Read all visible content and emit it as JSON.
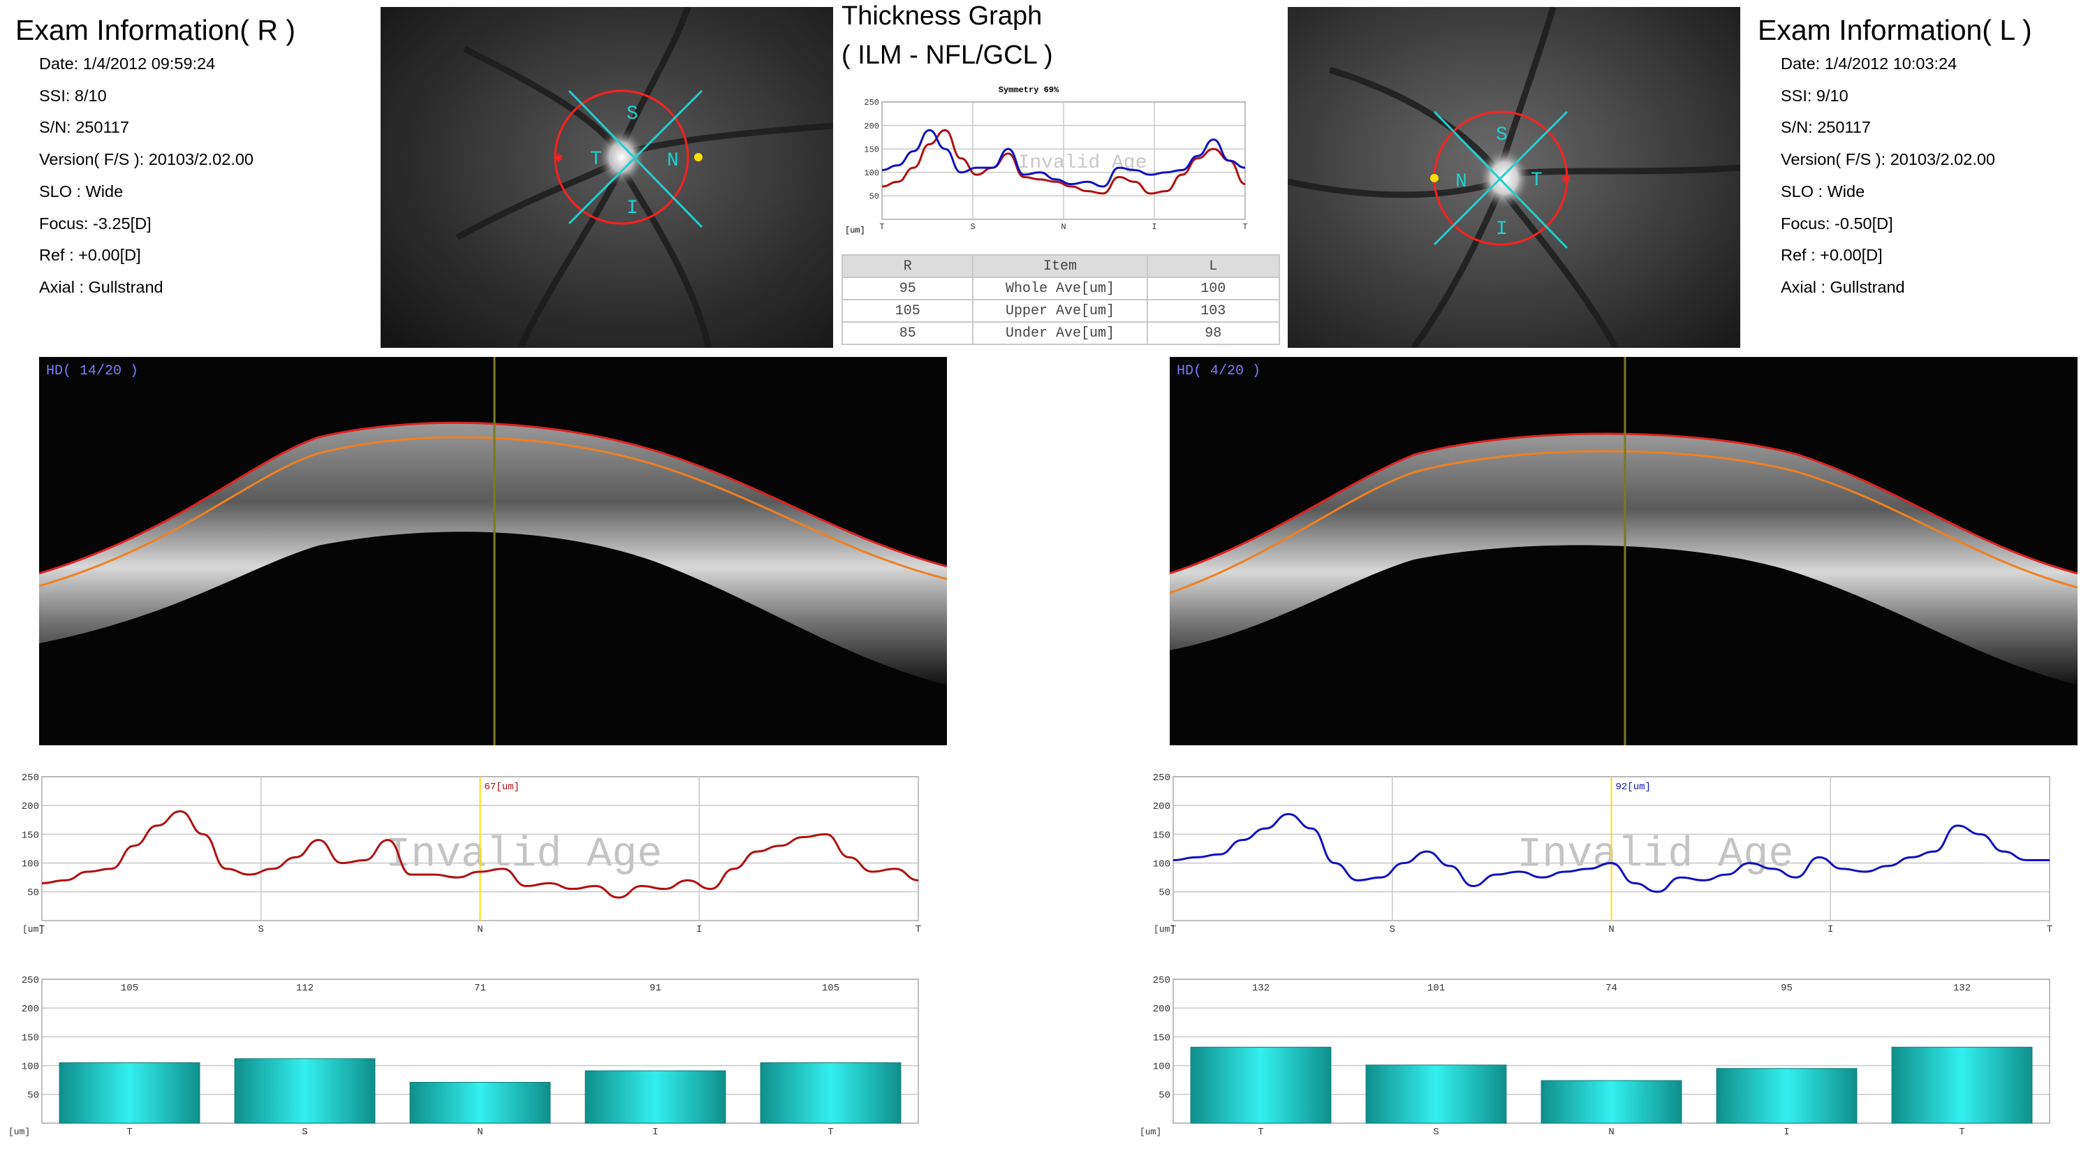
{
  "right_exam": {
    "title": "Exam Information( R )",
    "fields": [
      "Date: 1/4/2012 09:59:24",
      "SSI:  8/10",
      "S/N: 250117",
      "Version( F/S ): 20103/2.02.00",
      "SLO : Wide",
      "Focus: -3.25[D]",
      "Ref : +0.00[D]",
      "Axial : Gullstrand"
    ]
  },
  "left_exam": {
    "title": "Exam Information( L )",
    "fields": [
      "Date: 1/4/2012 10:03:24",
      "SSI:  9/10",
      "S/N: 250117",
      "Version( F/S ): 20103/2.02.00",
      "SLO : Wide",
      "Focus: -0.50[D]",
      "Ref : +0.00[D]",
      "Axial : Gullstrand"
    ]
  },
  "fundus_right": {
    "labels": {
      "s": "S",
      "n": "N",
      "i": "I",
      "t": "T"
    }
  },
  "fundus_left": {
    "labels": {
      "s": "S",
      "n": "N",
      "i": "I",
      "t": "T"
    }
  },
  "thickness_graph": {
    "title_line1": "Thickness Graph",
    "title_line2": "( ILM - NFL/GCL )",
    "chart_data": {
      "type": "line",
      "title": "Symmetry 69%",
      "ylim": [
        0,
        250
      ],
      "yticks": [
        250,
        200,
        150,
        100,
        50
      ],
      "yunit": "[um]",
      "xticks": [
        "T",
        "S",
        "N",
        "I",
        "T"
      ],
      "watermark": "Invalid Age",
      "series": [
        {
          "color": "#b01010",
          "values": [
            70,
            80,
            110,
            160,
            190,
            130,
            95,
            110,
            140,
            90,
            85,
            80,
            70,
            60,
            55,
            90,
            80,
            55,
            60,
            95,
            130,
            150,
            125,
            75
          ]
        },
        {
          "color": "#1010c0",
          "values": [
            105,
            115,
            145,
            190,
            150,
            100,
            110,
            110,
            150,
            95,
            100,
            85,
            75,
            80,
            70,
            110,
            105,
            95,
            100,
            105,
            135,
            170,
            125,
            110
          ]
        }
      ]
    },
    "table": {
      "headers": [
        "R",
        "Item",
        "L"
      ],
      "rows": [
        [
          "95",
          "Whole Ave[um]",
          "100"
        ],
        [
          "105",
          "Upper Ave[um]",
          "103"
        ],
        [
          "85",
          "Under Ave[um]",
          "98"
        ]
      ]
    }
  },
  "oct_right": {
    "label": "HD( 14/20 )"
  },
  "oct_left": {
    "label": "HD( 4/20 )"
  },
  "right_profile": {
    "chart_data": {
      "type": "line",
      "ylim": [
        0,
        250
      ],
      "yticks": [
        250,
        200,
        150,
        100,
        50
      ],
      "yunit": "[um]",
      "xticks": [
        "T",
        "S",
        "N",
        "I",
        "T"
      ],
      "watermark": "Invalid Age",
      "cursor_label": "67[um]",
      "series": [
        {
          "color": "#b01010",
          "values": [
            65,
            70,
            85,
            90,
            130,
            165,
            190,
            150,
            90,
            80,
            90,
            110,
            140,
            100,
            105,
            140,
            80,
            80,
            75,
            85,
            90,
            60,
            65,
            55,
            60,
            40,
            60,
            55,
            70,
            55,
            90,
            120,
            130,
            145,
            150,
            110,
            85,
            90,
            70
          ]
        }
      ]
    }
  },
  "left_profile": {
    "chart_data": {
      "type": "line",
      "ylim": [
        0,
        250
      ],
      "yticks": [
        250,
        200,
        150,
        100,
        50
      ],
      "yunit": "[um]",
      "xticks": [
        "T",
        "S",
        "N",
        "I",
        "T"
      ],
      "watermark": "Invalid Age",
      "cursor_label": "92[um]",
      "series": [
        {
          "color": "#1010c0",
          "values": [
            105,
            110,
            115,
            140,
            160,
            185,
            160,
            100,
            70,
            75,
            100,
            120,
            95,
            60,
            80,
            85,
            75,
            85,
            90,
            100,
            65,
            50,
            75,
            70,
            80,
            100,
            90,
            75,
            110,
            90,
            85,
            95,
            110,
            120,
            165,
            150,
            120,
            105,
            105
          ]
        }
      ]
    }
  },
  "right_bars": {
    "chart_data": {
      "type": "bar",
      "ylim": [
        0,
        250
      ],
      "yticks": [
        250,
        200,
        150,
        100,
        50
      ],
      "yunit": "[um]",
      "categories": [
        "T",
        "S",
        "N",
        "I",
        "T"
      ],
      "values": [
        105,
        112,
        71,
        91,
        105
      ],
      "value_labels": [
        "105",
        "112",
        "71",
        "91",
        "105"
      ],
      "color": "#19b3b0"
    }
  },
  "left_bars": {
    "chart_data": {
      "type": "bar",
      "ylim": [
        0,
        250
      ],
      "yticks": [
        250,
        200,
        150,
        100,
        50
      ],
      "yunit": "[um]",
      "categories": [
        "T",
        "S",
        "N",
        "I",
        "T"
      ],
      "values": [
        132,
        101,
        74,
        95,
        132
      ],
      "value_labels": [
        "132",
        "101",
        "74",
        "95",
        "132"
      ],
      "color": "#19b3b0"
    }
  }
}
